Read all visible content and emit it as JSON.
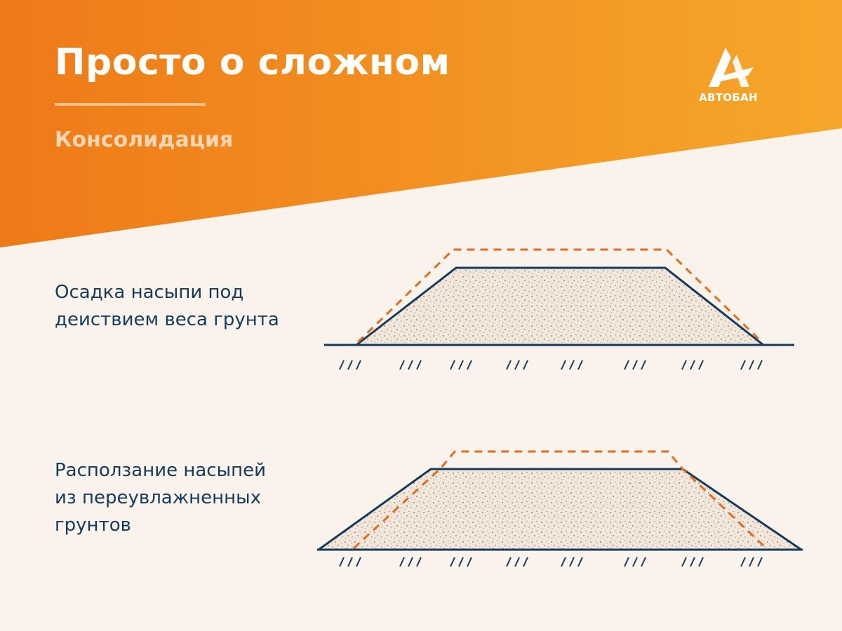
{
  "header": {
    "title": "Просто о сложном",
    "subtitle": "Консолидация"
  },
  "logo": {
    "text": "АВТОБАН"
  },
  "panels": [
    {
      "caption_lines": [
        "Осадка насыпи под",
        "деиствием веса грунта"
      ]
    },
    {
      "caption_lines": [
        "Расползание насыпей",
        "из переувлажненных",
        "грунтов"
      ]
    }
  ],
  "colors": {
    "orange_dark": "#ee7a18",
    "orange_light": "#f6a72a",
    "background": "#faf3ec",
    "navy": "#163a5c",
    "dashed_outline": "#e06d1f",
    "fill": "#f2e3d6"
  }
}
